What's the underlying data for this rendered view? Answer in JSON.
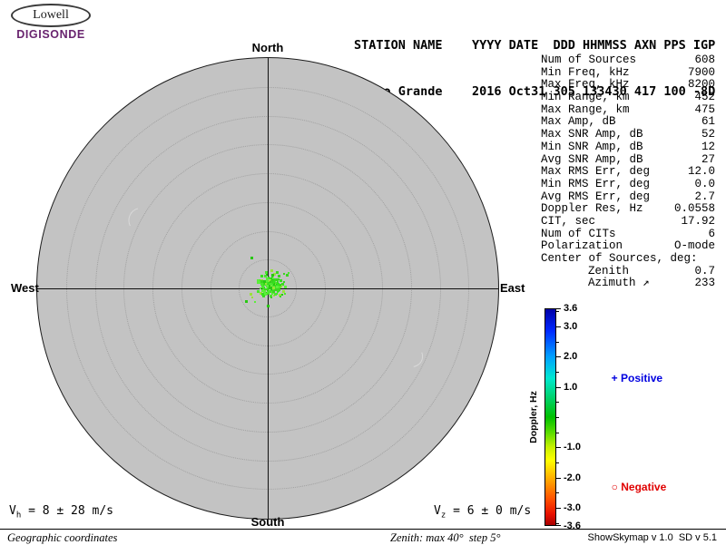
{
  "header": {
    "logo": {
      "name": "Lowell",
      "product": "DIGISONDE",
      "brand_color": "#69246f"
    },
    "columns_line": "STATION NAME    YYYY DATE  DDD HHMMSS AXN PPS IGP",
    "values_line": "Campo Grande    2016 Oct31 305 133430 417 100 -8D"
  },
  "skymap": {
    "compass": {
      "north": "North",
      "south": "South",
      "east": "East",
      "west": "West"
    },
    "rings": 8,
    "zenith_max_deg": 40,
    "zenith_step_deg": 5,
    "cluster": {
      "seed": 12,
      "count": 150,
      "sigma": 6.2,
      "sigma_y": 5.4,
      "outliers": 16,
      "outlier_sigma": 14,
      "center_offset": [
        3,
        -4
      ],
      "dot_colors": [
        "#35e01c",
        "#4ae62e",
        "#28c813",
        "#5bee3a",
        "#3bd41f",
        "#9ae23a"
      ]
    }
  },
  "stats": {
    "rows": [
      {
        "label": "Num of Sources",
        "value": "608"
      },
      {
        "label": "Min Freq, kHz",
        "value": "7900"
      },
      {
        "label": "Max Freq, kHz",
        "value": "8200"
      },
      {
        "label": "Min Range, km",
        "value": "452"
      },
      {
        "label": "Max Range, km",
        "value": "475"
      },
      {
        "label": "Max Amp, dB",
        "value": "61"
      },
      {
        "label": "Max SNR Amp, dB",
        "value": "52"
      },
      {
        "label": "Min SNR Amp, dB",
        "value": "12"
      },
      {
        "label": "Avg SNR Amp, dB",
        "value": "27"
      },
      {
        "label": "Max RMS Err, deg",
        "value": "12.0"
      },
      {
        "label": "Min RMS Err, deg",
        "value": "0.0"
      },
      {
        "label": "Avg RMS Err, deg",
        "value": "2.7"
      },
      {
        "label": "Doppler Res, Hz",
        "value": "0.0558"
      },
      {
        "label": "CIT, sec",
        "value": "17.92"
      },
      {
        "label": "Num of CITs",
        "value": "6"
      },
      {
        "label": "Polarization",
        "value": "O-mode"
      },
      {
        "label": "Center of Sources, deg:",
        "value": ""
      },
      {
        "label": "Zenith",
        "value": "0.7",
        "indent": true
      },
      {
        "label": "Azimuth ↗",
        "value": "233",
        "indent": true
      }
    ]
  },
  "colorbar": {
    "title": "Doppler, Hz",
    "max": 3.6,
    "min": -3.6,
    "labeled_ticks": [
      {
        "value": 3.6,
        "label": "3.6"
      },
      {
        "value": 3.0,
        "label": "3.0"
      },
      {
        "value": 2.0,
        "label": "2.0"
      },
      {
        "value": 1.0,
        "label": "1.0"
      },
      {
        "value": -1.0,
        "label": "-1.0"
      },
      {
        "value": -2.0,
        "label": "-2.0"
      },
      {
        "value": -3.0,
        "label": "-3.0"
      },
      {
        "value": -3.6,
        "label": "-3.6"
      }
    ],
    "minor_ticks": [
      3.5,
      2.5,
      1.5,
      0.5,
      0,
      -0.5,
      -1.5,
      -2.5,
      -3.5
    ],
    "legend": {
      "positive_marker": "+",
      "positive_label": " Positive",
      "positive_color": "#0000e0",
      "negative_marker": "○",
      "negative_label": " Negative",
      "negative_color": "#e00000"
    }
  },
  "footer": {
    "vh": {
      "base": "V",
      "sub": "h",
      "rest": " = 8 ± 28 m/s"
    },
    "vz": {
      "base": "V",
      "sub": "z",
      "rest": " = 6 ± 0 m/s"
    },
    "coordinates_note": "Geographic coordinates",
    "zenith_note": "Zenith: max 40°  step 5°",
    "version": "ShowSkymap v 1.0  SD v 5.1"
  }
}
